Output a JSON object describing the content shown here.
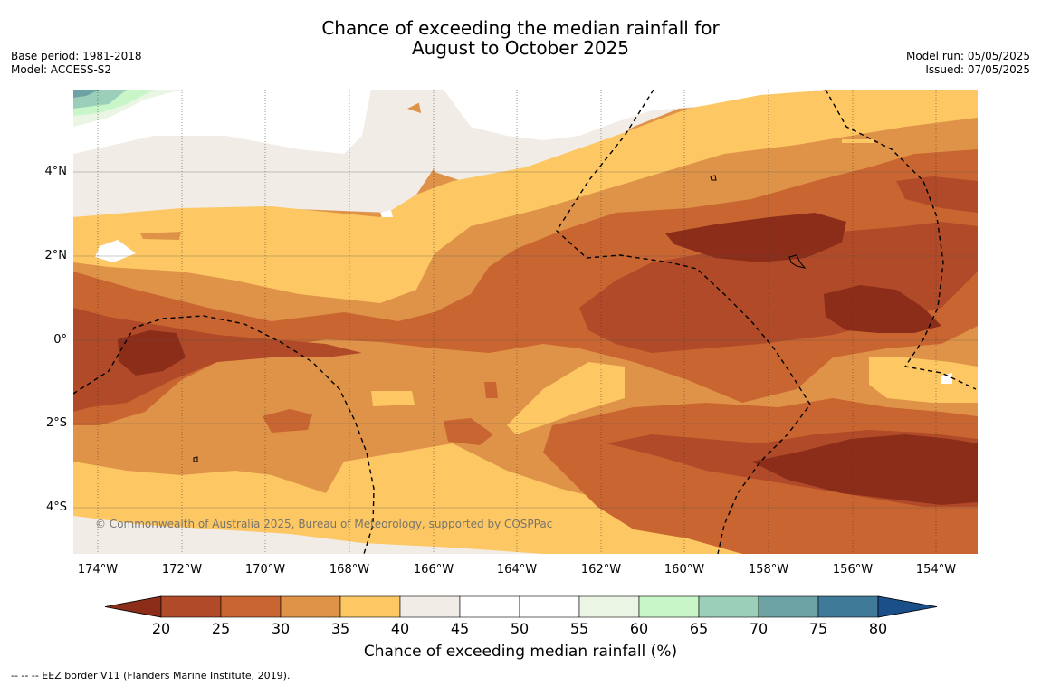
{
  "title_line1": "Chance of exceeding the median rainfall for",
  "title_line2": "August to October 2025",
  "base_period": "Base period: 1981-2018",
  "model": "Model: ACCESS-S2",
  "model_run": "Model run: 05/05/2025",
  "issued": "Issued: 07/05/2025",
  "copyright": "© Commonwealth of Australia 2025, Bureau of Meteorology, supported by COSPPac",
  "lat_labels": [
    "4°N",
    "2°N",
    "0°",
    "2°S",
    "4°S"
  ],
  "lon_labels": [
    "174°W",
    "172°W",
    "170°W",
    "168°W",
    "166°W",
    "164°W",
    "162°W",
    "160°W",
    "158°W",
    "156°W",
    "154°W"
  ],
  "colorbar": {
    "ticks": [
      "20",
      "25",
      "30",
      "35",
      "40",
      "45",
      "50",
      "55",
      "60",
      "65",
      "70",
      "75",
      "80"
    ],
    "colors": [
      "#8c2d1a",
      "#b04a28",
      "#c96531",
      "#df9348",
      "#fdc863",
      "#f1ece6",
      "#ffffff",
      "#ffffff",
      "#eaf5e4",
      "#c9f6c9",
      "#9ccfb9",
      "#6ea3a6",
      "#3f7a99",
      "#1b4f8a"
    ],
    "label": "Chance of exceeding median rainfall (%)"
  },
  "footer": "--  --  -- EEZ border V11 (Flanders Marine Institute, 2019)."
}
